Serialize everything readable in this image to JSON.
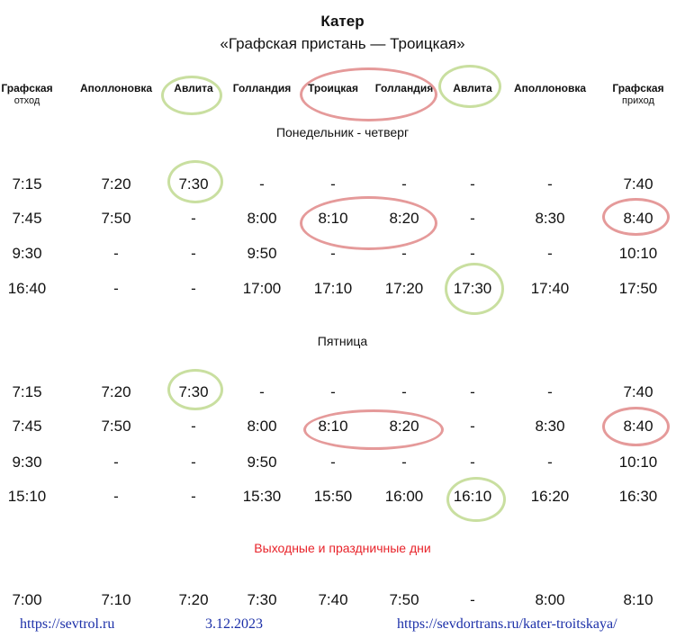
{
  "header": {
    "title": "Катер",
    "subtitle": "«Графская пристань — Троицкая»"
  },
  "columns": [
    {
      "name": "Графская",
      "sub": "отход"
    },
    {
      "name": "Аполлоновка",
      "sub": ""
    },
    {
      "name": "Авлита",
      "sub": ""
    },
    {
      "name": "Голландия",
      "sub": ""
    },
    {
      "name": "Троицкая",
      "sub": ""
    },
    {
      "name": "Голландия",
      "sub": ""
    },
    {
      "name": "Авлита",
      "sub": ""
    },
    {
      "name": "Аполлоновка",
      "sub": ""
    },
    {
      "name": "Графская",
      "sub": "приход"
    }
  ],
  "sections": [
    {
      "label": "Понедельник - четверг",
      "rows": [
        [
          "7:15",
          "7:20",
          "7:30",
          "-",
          "-",
          "-",
          "-",
          "-",
          "7:40"
        ],
        [
          "7:45",
          "7:50",
          "-",
          "8:00",
          "8:10",
          "8:20",
          "-",
          "8:30",
          "8:40"
        ],
        [
          "9:30",
          "-",
          "-",
          "9:50",
          "-",
          "-",
          "-",
          "-",
          "10:10"
        ],
        [
          "16:40",
          "-",
          "-",
          "17:00",
          "17:10",
          "17:20",
          "17:30",
          "17:40",
          "17:50"
        ]
      ]
    },
    {
      "label": "Пятница",
      "rows": [
        [
          "7:15",
          "7:20",
          "7:30",
          "-",
          "-",
          "-",
          "-",
          "-",
          "7:40"
        ],
        [
          "7:45",
          "7:50",
          "-",
          "8:00",
          "8:10",
          "8:20",
          "-",
          "8:30",
          "8:40"
        ],
        [
          "9:30",
          "-",
          "-",
          "9:50",
          "-",
          "-",
          "-",
          "-",
          "10:10"
        ],
        [
          "15:10",
          "-",
          "-",
          "15:30",
          "15:50",
          "16:00",
          "16:10",
          "16:20",
          "16:30"
        ]
      ]
    },
    {
      "label": "Выходные и праздничные дни",
      "rows": [
        [
          "7:00",
          "7:10",
          "7:20",
          "7:30",
          "7:40",
          "7:50",
          "-",
          "8:00",
          "8:10"
        ]
      ]
    }
  ],
  "footer": {
    "left_link": "https://sevtrol.ru",
    "date": "3.12.2023",
    "right_link": "https://sevdortrans.ru/kater-troitskaya/"
  },
  "colors": {
    "highlight_green": "#c9dfa0",
    "highlight_red": "#e59a9a",
    "weekend_label": "#e8232a",
    "footer_text": "#1b2fa8"
  }
}
